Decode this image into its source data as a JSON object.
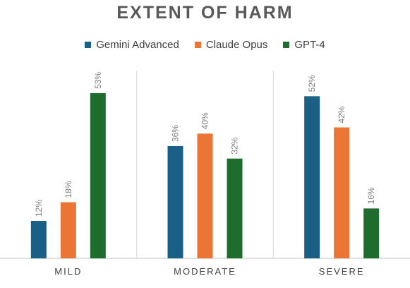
{
  "chart_data": {
    "type": "bar",
    "title": "EXTENT OF HARM",
    "xlabel": "",
    "ylabel": "",
    "categories": [
      "MILD",
      "MODERATE",
      "SEVERE"
    ],
    "series": [
      {
        "name": "Gemini Advanced",
        "color": "#1a5f86",
        "values": [
          12,
          36,
          52
        ],
        "labels": [
          "12%",
          "36%",
          "52%"
        ]
      },
      {
        "name": "Claude Opus",
        "color": "#ea7534",
        "values": [
          18,
          40,
          42
        ],
        "labels": [
          "18%",
          "40%",
          "42%"
        ]
      },
      {
        "name": "GPT-4",
        "color": "#1e6d2e",
        "values": [
          53,
          32,
          16
        ],
        "labels": [
          "53%",
          "32%",
          "16%"
        ]
      }
    ],
    "ylim": [
      0,
      60
    ],
    "grid": false,
    "legend_position": "top"
  }
}
